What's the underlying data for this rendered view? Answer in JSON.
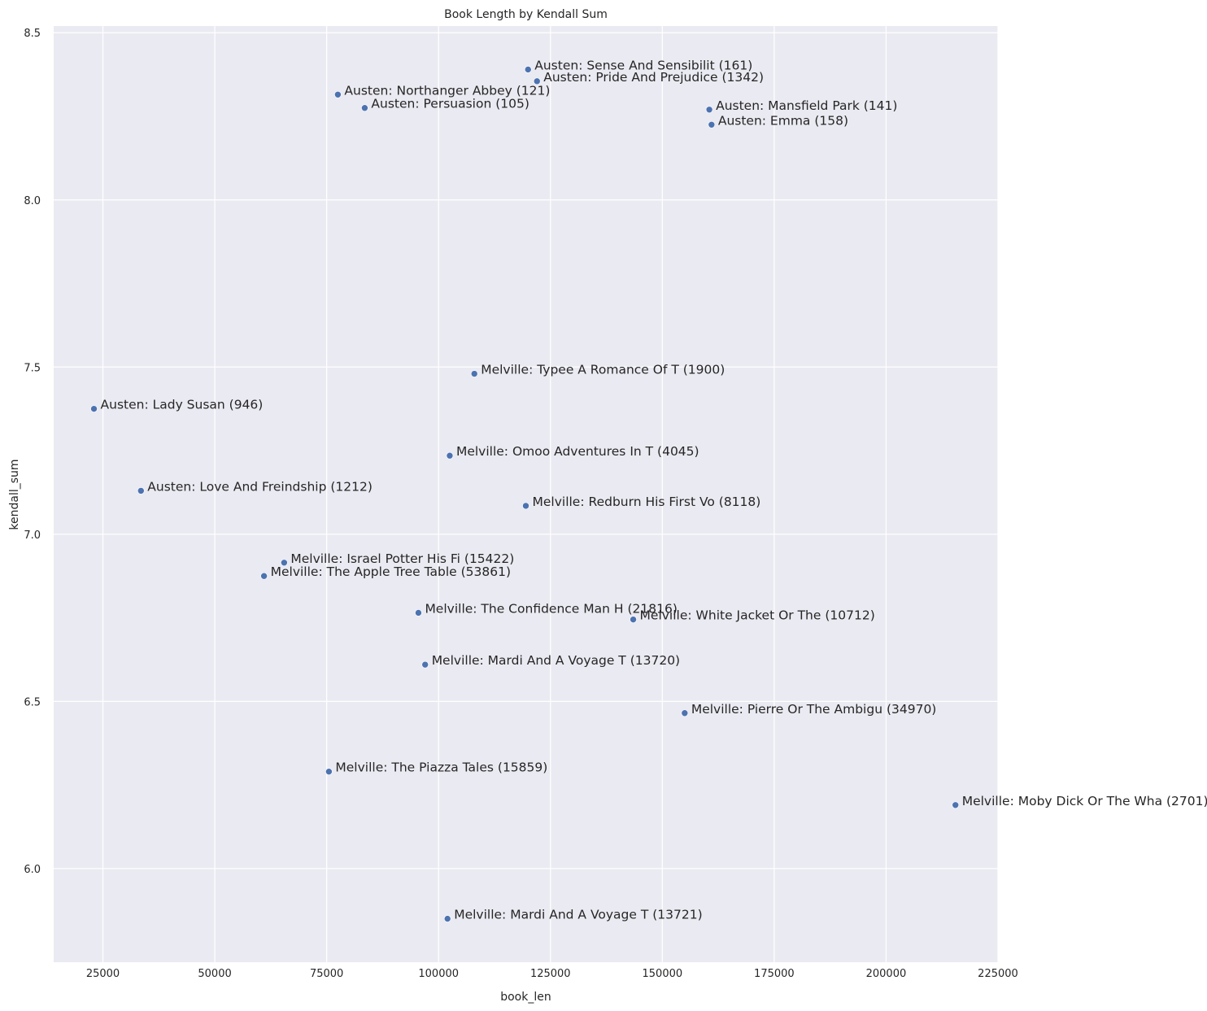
{
  "chart_data": {
    "type": "scatter",
    "title": "Book Length by Kendall Sum",
    "xlabel": "book_len",
    "ylabel": "kendall_sum",
    "xlim": [
      14000,
      225000
    ],
    "ylim": [
      5.72,
      8.52
    ],
    "xticks": [
      25000,
      50000,
      75000,
      100000,
      125000,
      150000,
      175000,
      200000,
      225000
    ],
    "yticks": [
      6.0,
      6.5,
      7.0,
      7.5,
      8.0,
      8.5
    ],
    "xtick_labels": [
      "25000",
      "50000",
      "75000",
      "100000",
      "125000",
      "150000",
      "175000",
      "200000",
      "225000"
    ],
    "ytick_labels": [
      "6.0",
      "6.5",
      "7.0",
      "7.5",
      "8.0",
      "8.5"
    ],
    "grid": true,
    "style": {
      "background": "#EAEAF2",
      "grid_color": "#FFFFFF",
      "point_color": "#4C72B0"
    },
    "points": [
      {
        "x": 120000,
        "y": 8.39,
        "label": "Austen: Sense And Sensibilit (161)"
      },
      {
        "x": 122000,
        "y": 8.355,
        "label": "Austen: Pride And Prejudice (1342)"
      },
      {
        "x": 77500,
        "y": 8.315,
        "label": "Austen: Northanger Abbey (121)"
      },
      {
        "x": 83500,
        "y": 8.275,
        "label": "Austen: Persuasion (105)"
      },
      {
        "x": 160500,
        "y": 8.27,
        "label": "Austen: Mansfield Park (141)"
      },
      {
        "x": 161000,
        "y": 8.225,
        "label": "Austen: Emma (158)"
      },
      {
        "x": 108000,
        "y": 7.48,
        "label": "Melville: Typee A Romance Of T (1900)"
      },
      {
        "x": 23000,
        "y": 7.375,
        "label": "Austen: Lady Susan (946)"
      },
      {
        "x": 102500,
        "y": 7.235,
        "label": "Melville: Omoo Adventures In T (4045)"
      },
      {
        "x": 33500,
        "y": 7.13,
        "label": "Austen: Love And Freindship  (1212)"
      },
      {
        "x": 119500,
        "y": 7.085,
        "label": "Melville: Redburn His First Vo (8118)"
      },
      {
        "x": 65500,
        "y": 6.915,
        "label": "Melville: Israel Potter His Fi (15422)"
      },
      {
        "x": 61000,
        "y": 6.875,
        "label": "Melville: The Apple Tree Table (53861)"
      },
      {
        "x": 95500,
        "y": 6.765,
        "label": "Melville: The Confidence Man H (21816)"
      },
      {
        "x": 143500,
        "y": 6.745,
        "label": "Melville: White Jacket Or The  (10712)"
      },
      {
        "x": 97000,
        "y": 6.61,
        "label": "Melville: Mardi And A Voyage T (13720)"
      },
      {
        "x": 155000,
        "y": 6.465,
        "label": "Melville: Pierre Or The Ambigu (34970)"
      },
      {
        "x": 75500,
        "y": 6.29,
        "label": "Melville: The Piazza Tales (15859)"
      },
      {
        "x": 215500,
        "y": 6.19,
        "label": "Melville: Moby Dick Or The Wha (2701)"
      },
      {
        "x": 102000,
        "y": 5.85,
        "label": "Melville: Mardi And A Voyage T (13721)"
      }
    ]
  }
}
